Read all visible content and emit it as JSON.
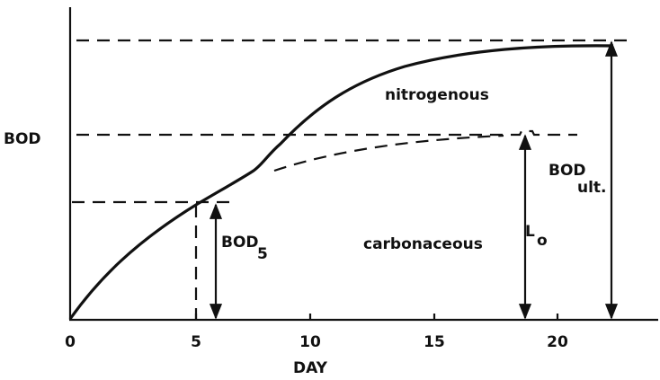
{
  "y_label": "BOD",
  "x_label": "DAY",
  "x_ticks": [
    "0",
    "5",
    "10",
    "15",
    "20"
  ],
  "annotations": {
    "nitrogenous": "nitrogenous",
    "carbonaceous": "carbonaceous",
    "lo": {
      "main": "L",
      "sub": "o"
    },
    "bod5": {
      "main": "BOD",
      "sub": "5"
    },
    "bod_ult": {
      "main": "BOD",
      "sub": "ult."
    }
  }
}
